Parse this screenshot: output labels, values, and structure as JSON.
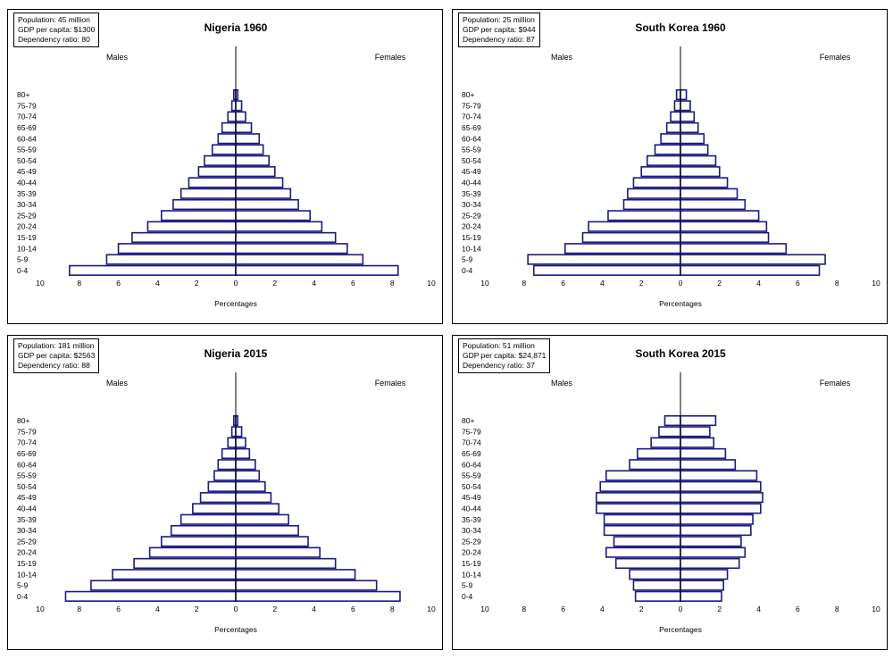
{
  "colors": {
    "bar_fill": "#ffffff",
    "bar_stroke": "#1a1a80",
    "axis": "#000000"
  },
  "chart_data": [
    {
      "type": "bar",
      "orientation": "horizontal-population-pyramid",
      "title": "Nigeria 1960",
      "info": [
        "Population: 45 million",
        "GDP per capita: $1300",
        "Dependency ratio: 80"
      ],
      "left_label": "Males",
      "right_label": "Females",
      "xlabel": "Percentages",
      "xlim": [
        -10,
        10
      ],
      "xticks": [
        10,
        8,
        6,
        4,
        2,
        0,
        2,
        4,
        6,
        8,
        10
      ],
      "categories": [
        "0-4",
        "5-9",
        "10-14",
        "15-19",
        "20-24",
        "25-29",
        "30-34",
        "35-39",
        "40-44",
        "45-49",
        "50-54",
        "55-59",
        "60-64",
        "65-69",
        "70-74",
        "75-79",
        "80+"
      ],
      "series": [
        {
          "name": "Males",
          "values": [
            8.5,
            6.6,
            6.0,
            5.3,
            4.5,
            3.8,
            3.2,
            2.8,
            2.4,
            1.9,
            1.6,
            1.2,
            0.9,
            0.7,
            0.4,
            0.2,
            0.1
          ]
        },
        {
          "name": "Females",
          "values": [
            8.3,
            6.5,
            5.7,
            5.1,
            4.4,
            3.8,
            3.2,
            2.8,
            2.4,
            2.0,
            1.7,
            1.4,
            1.2,
            0.8,
            0.5,
            0.3,
            0.1
          ]
        }
      ]
    },
    {
      "type": "bar",
      "orientation": "horizontal-population-pyramid",
      "title": "South Korea 1960",
      "info": [
        "Population: 25 million",
        "GDP per capita: $944",
        "Dependency ratio: 87"
      ],
      "left_label": "Males",
      "right_label": "Females",
      "xlabel": "Percentages",
      "xlim": [
        -10,
        10
      ],
      "xticks": [
        10,
        8,
        6,
        4,
        2,
        0,
        2,
        4,
        6,
        8,
        10
      ],
      "categories": [
        "0-4",
        "5-9",
        "10-14",
        "15-19",
        "20-24",
        "25-29",
        "30-34",
        "35-39",
        "40-44",
        "45-49",
        "50-54",
        "55-59",
        "60-64",
        "65-69",
        "70-74",
        "75-79",
        "80+"
      ],
      "series": [
        {
          "name": "Males",
          "values": [
            7.5,
            7.8,
            5.9,
            5.0,
            4.7,
            3.7,
            2.9,
            2.7,
            2.4,
            2.0,
            1.7,
            1.3,
            1.0,
            0.7,
            0.5,
            0.3,
            0.2
          ]
        },
        {
          "name": "Females",
          "values": [
            7.1,
            7.4,
            5.4,
            4.5,
            4.4,
            4.0,
            3.3,
            2.9,
            2.4,
            2.0,
            1.8,
            1.4,
            1.2,
            0.9,
            0.7,
            0.5,
            0.3
          ]
        }
      ]
    },
    {
      "type": "bar",
      "orientation": "horizontal-population-pyramid",
      "title": "Nigeria 2015",
      "info": [
        "Population: 181 million",
        "GDP per capita: $2563",
        "Dependency ratio: 88"
      ],
      "left_label": "Males",
      "right_label": "Females",
      "xlabel": "Percentages",
      "xlim": [
        -10,
        10
      ],
      "xticks": [
        10,
        8,
        6,
        4,
        2,
        0,
        2,
        4,
        6,
        8,
        10
      ],
      "categories": [
        "0-4",
        "5-9",
        "10-14",
        "15-19",
        "20-24",
        "25-29",
        "30-34",
        "35-39",
        "40-44",
        "45-49",
        "50-54",
        "55-59",
        "60-64",
        "65-69",
        "70-74",
        "75-79",
        "80+"
      ],
      "series": [
        {
          "name": "Males",
          "values": [
            8.7,
            7.4,
            6.3,
            5.2,
            4.4,
            3.8,
            3.3,
            2.8,
            2.2,
            1.8,
            1.4,
            1.1,
            0.9,
            0.7,
            0.4,
            0.2,
            0.1
          ]
        },
        {
          "name": "Females",
          "values": [
            8.4,
            7.2,
            6.1,
            5.1,
            4.3,
            3.7,
            3.2,
            2.7,
            2.2,
            1.8,
            1.5,
            1.2,
            1.0,
            0.7,
            0.5,
            0.3,
            0.1
          ]
        }
      ]
    },
    {
      "type": "bar",
      "orientation": "horizontal-population-pyramid",
      "title": "South Korea 2015",
      "info": [
        "Population: 51 million",
        "GDP per capita: $24,871",
        "Dependency ratio: 37"
      ],
      "left_label": "Males",
      "right_label": "Females",
      "xlabel": "Percentages",
      "xlim": [
        -10,
        10
      ],
      "xticks": [
        10,
        8,
        6,
        4,
        2,
        0,
        2,
        4,
        6,
        8,
        10
      ],
      "categories": [
        "0-4",
        "5-9",
        "10-14",
        "15-19",
        "20-24",
        "25-29",
        "30-34",
        "35-39",
        "40-44",
        "45-49",
        "50-54",
        "55-59",
        "60-64",
        "65-69",
        "70-74",
        "75-79",
        "80+"
      ],
      "series": [
        {
          "name": "Males",
          "values": [
            2.3,
            2.4,
            2.6,
            3.3,
            3.8,
            3.4,
            3.9,
            3.9,
            4.3,
            4.3,
            4.1,
            3.8,
            2.6,
            2.2,
            1.5,
            1.1,
            0.8
          ]
        },
        {
          "name": "Females",
          "values": [
            2.1,
            2.2,
            2.4,
            3.0,
            3.3,
            3.1,
            3.6,
            3.7,
            4.1,
            4.2,
            4.1,
            3.9,
            2.8,
            2.3,
            1.7,
            1.5,
            1.8
          ]
        }
      ]
    }
  ]
}
